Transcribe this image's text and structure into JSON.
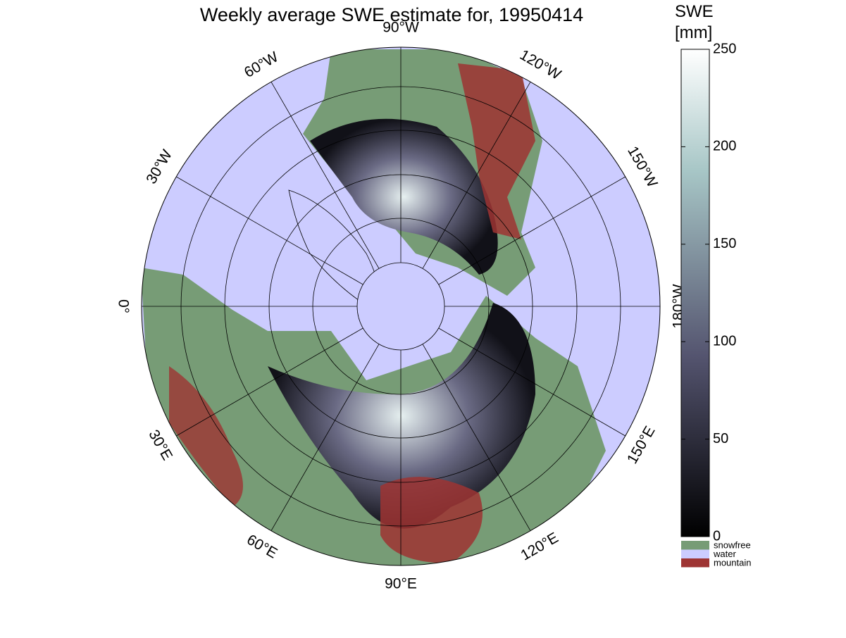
{
  "title": "Weekly average SWE estimate for, 19950414",
  "longitude_labels": [
    "0°",
    "30°E",
    "60°E",
    "90°E",
    "120°E",
    "150°E",
    "180°W",
    "150°W",
    "120°W",
    "90°W",
    "60°W",
    "30°W"
  ],
  "colorbar": {
    "label": [
      "SWE",
      "[mm]"
    ],
    "lim": [
      0,
      250
    ],
    "ticks": [
      0,
      50,
      100,
      150,
      200,
      250
    ]
  },
  "legend": [
    {
      "name": "snowfree",
      "color": "#779c76"
    },
    {
      "name": "water",
      "color": "#ccccff"
    },
    {
      "name": "mountain",
      "color": "#9e3433"
    }
  ]
}
